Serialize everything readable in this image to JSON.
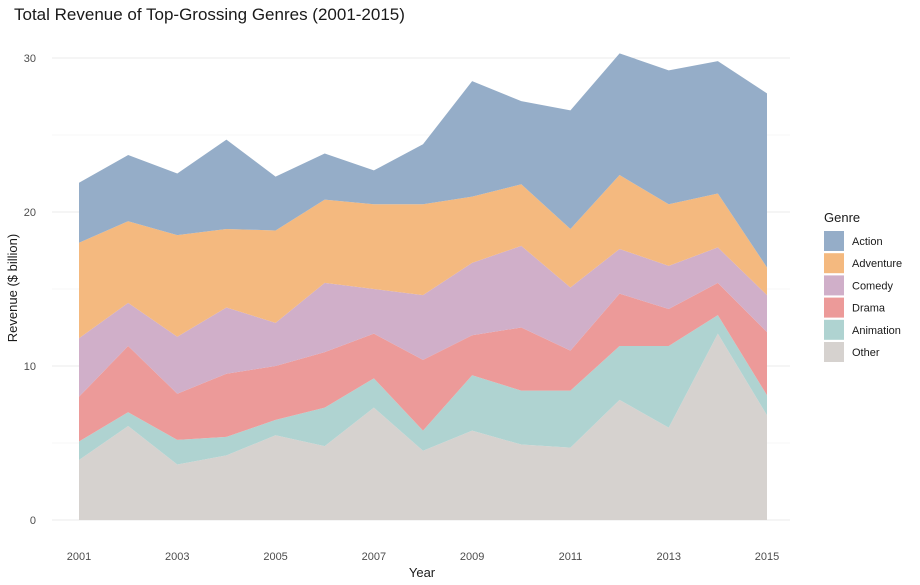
{
  "chart_data": {
    "type": "area",
    "stacked": true,
    "title": "Total Revenue of Top-Grossing Genres (2001-2015)",
    "xlabel": "Year",
    "ylabel": "Revenue ($ billion)",
    "x": [
      2001,
      2002,
      2003,
      2004,
      2005,
      2006,
      2007,
      2008,
      2009,
      2010,
      2011,
      2012,
      2013,
      2014,
      2015
    ],
    "xticks": [
      2001,
      2003,
      2005,
      2007,
      2009,
      2011,
      2013,
      2015
    ],
    "xtick_labels": [
      "2001",
      "2003",
      "2005",
      "2007",
      "2009",
      "2011",
      "2013",
      "2015"
    ],
    "xlim": [
      2001,
      2015
    ],
    "yticks": [
      0,
      10,
      20,
      30
    ],
    "ytick_labels": [
      "0",
      "10",
      "20",
      "30"
    ],
    "ylim": [
      0,
      30
    ],
    "grid": true,
    "legend": {
      "title": "Genre",
      "position": "right"
    },
    "series": [
      {
        "name": "Other",
        "color": "#d6d2cf",
        "values": [
          3.9,
          6.1,
          3.6,
          4.2,
          5.5,
          4.8,
          7.3,
          4.5,
          5.8,
          4.9,
          4.7,
          7.8,
          6.0,
          12.1,
          6.8
        ]
      },
      {
        "name": "Animation",
        "color": "#afd3d1",
        "values": [
          1.2,
          0.9,
          1.6,
          1.2,
          1.0,
          2.5,
          1.9,
          1.3,
          3.6,
          3.5,
          3.7,
          3.5,
          5.3,
          1.2,
          1.3
        ]
      },
      {
        "name": "Drama",
        "color": "#ec9a99",
        "values": [
          2.9,
          4.3,
          3.0,
          4.1,
          3.5,
          3.6,
          2.9,
          4.6,
          2.6,
          4.1,
          2.6,
          3.4,
          2.4,
          2.1,
          4.1
        ]
      },
      {
        "name": "Comedy",
        "color": "#d0afc9",
        "values": [
          3.8,
          2.8,
          3.7,
          4.3,
          2.8,
          4.5,
          2.9,
          4.2,
          4.7,
          5.3,
          4.1,
          2.9,
          2.8,
          2.3,
          2.4
        ]
      },
      {
        "name": "Adventure",
        "color": "#f4b97f",
        "values": [
          6.2,
          5.3,
          6.6,
          5.1,
          6.0,
          5.4,
          5.5,
          5.9,
          4.3,
          4.0,
          3.8,
          4.8,
          4.0,
          3.5,
          1.8
        ]
      },
      {
        "name": "Action",
        "color": "#95adc8",
        "values": [
          3.9,
          4.3,
          4.0,
          5.8,
          3.5,
          3.0,
          2.2,
          3.9,
          7.5,
          5.4,
          7.7,
          7.9,
          8.7,
          8.6,
          11.3
        ]
      }
    ],
    "legend_order": [
      "Action",
      "Adventure",
      "Comedy",
      "Drama",
      "Animation",
      "Other"
    ]
  }
}
